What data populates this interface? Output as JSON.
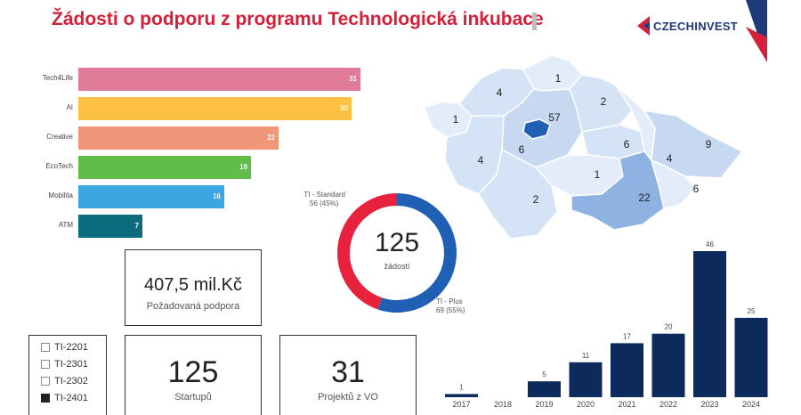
{
  "header": {
    "title": "Žádosti o podporu z programu Technologická inkubace",
    "logo_text": "CZECHINVEST"
  },
  "colors": {
    "title_red": "#d3213a",
    "navy": "#0d2a5c",
    "donut_standard": "#e8213c",
    "donut_plus": "#1f5fb4"
  },
  "categories": [
    {
      "label": "Tech4Life",
      "value": 31,
      "color": "#e07b9a"
    },
    {
      "label": "AI",
      "value": 30,
      "color": "#fec042"
    },
    {
      "label": "Creative",
      "value": 22,
      "color": "#f0977a"
    },
    {
      "label": "EcoTech",
      "value": 19,
      "color": "#62bc48"
    },
    {
      "label": "Mobilita",
      "value": 16,
      "color": "#3ba6e2"
    },
    {
      "label": "ATM",
      "value": 7,
      "color": "#0a6c7c"
    }
  ],
  "kpi": {
    "support_value": "407,5 mil.Kč",
    "support_label": "Požadovaná podpora",
    "startups_value": "125",
    "startups_label": "Startupů",
    "projects_value": "31",
    "projects_label": "Projektů z VO"
  },
  "filters": [
    {
      "label": "TI-2201",
      "checked": false
    },
    {
      "label": "TI-2301",
      "checked": false
    },
    {
      "label": "TI-2302",
      "checked": false
    },
    {
      "label": "TI-2401",
      "checked": true
    }
  ],
  "donut": {
    "total": "125",
    "total_label": "žádostí",
    "standard_label": "TI - Standard",
    "standard_value": "56 (45%)",
    "standard_count": 56,
    "plus_label": "TI - Plus",
    "plus_value": "69 (55%)",
    "plus_count": 69
  },
  "map_regions": [
    "4",
    "1",
    "1",
    "57",
    "2",
    "6",
    "6",
    "9",
    "4",
    "4",
    "1",
    "22",
    "6",
    "2"
  ],
  "chart_data": {
    "type": "bar",
    "categories": [
      "2017",
      "2018",
      "2019",
      "2020",
      "2021",
      "2022",
      "2023",
      "2024"
    ],
    "values": [
      1,
      0,
      5,
      11,
      17,
      20,
      46,
      25
    ],
    "value_labels": [
      "1",
      "",
      "5",
      "11",
      "17",
      "20",
      "46",
      "25"
    ],
    "ylim": [
      0,
      46
    ],
    "grid": false
  }
}
